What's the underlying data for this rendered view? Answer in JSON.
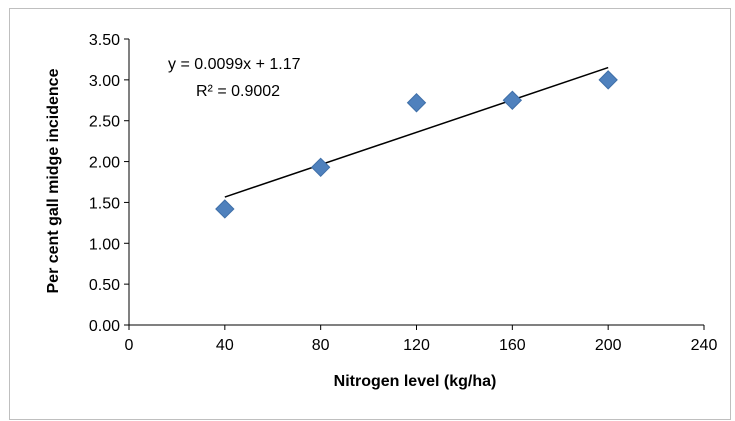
{
  "chart_data": {
    "type": "scatter",
    "title": "",
    "xlabel": "Nitrogen level (kg/ha)",
    "ylabel": "Per cent gall midge incidence",
    "xlim": [
      0,
      240
    ],
    "ylim": [
      0,
      3.5
    ],
    "x_ticks": [
      "0",
      "40",
      "80",
      "120",
      "160",
      "200",
      "240"
    ],
    "y_ticks": [
      "0.00",
      "0.50",
      "1.00",
      "1.50",
      "2.00",
      "2.50",
      "3.00",
      "3.50"
    ],
    "series": [
      {
        "x": [
          40,
          80,
          120,
          160,
          200
        ],
        "y": [
          1.42,
          1.93,
          2.72,
          2.75,
          3.0
        ],
        "marker": "diamond",
        "color": "#4f81bd"
      }
    ],
    "trendline": {
      "type": "linear",
      "slope": 0.0099,
      "intercept": 1.17,
      "x_range": [
        40,
        200
      ],
      "color": "#000000",
      "equation": "y = 0.0099x + 1.17",
      "r_squared": "R² = 0.9002"
    },
    "grid": false,
    "legend": "none"
  }
}
